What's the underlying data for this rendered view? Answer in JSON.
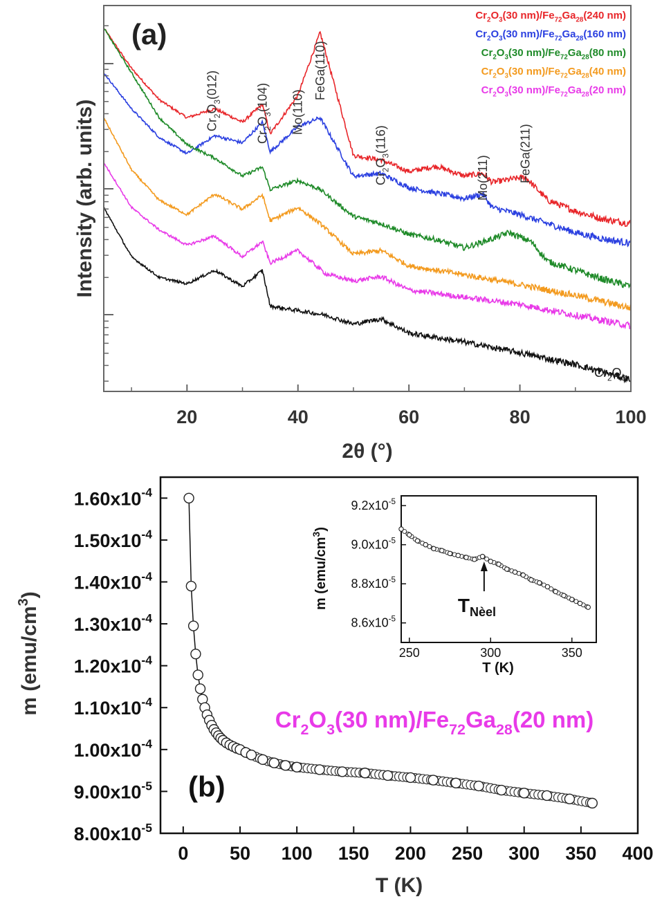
{
  "chart_data": [
    {
      "type": "line",
      "panel_label": "(a)",
      "xlabel": "2θ (°)",
      "ylabel": "Intensity (arb. units)",
      "xlim": [
        5,
        100
      ],
      "xticks": [
        20,
        40,
        60,
        80,
        100
      ],
      "log_like_minor_ticks": true,
      "legend_position": "top-right",
      "legend": [
        {
          "text": "Cr2O3(30 nm)/Fe72Ga28(240 nm)",
          "color": "#e8262a"
        },
        {
          "text": "Cr2O3(30 nm)/Fe72Ga28(160 nm)",
          "color": "#2a3fe0"
        },
        {
          "text": "Cr2O3(30 nm)/Fe72Ga28(80 nm)",
          "color": "#1e8a28"
        },
        {
          "text": "Cr2O3(30 nm)/Fe72Ga28(40 nm)",
          "color": "#f39a1e"
        },
        {
          "text": "Cr2O3(30 nm)/Fe72Ga28(20 nm)",
          "color": "#e83ae8"
        }
      ],
      "peak_labels": [
        {
          "text": "Cr2O3(012)",
          "x": 24.5
        },
        {
          "text": "Cr2O3(104)",
          "x": 33.6
        },
        {
          "text": "Mo(110)",
          "x": 40.0
        },
        {
          "text": "FeGa(110)",
          "x": 44.0
        },
        {
          "text": "Cr2O3(116)",
          "x": 54.9
        },
        {
          "text": "Mo(211)",
          "x": 73.3
        },
        {
          "text": "FeGa(211)",
          "x": 81.0
        }
      ],
      "substrate_label": "Cr2O3",
      "series": [
        {
          "name": "Cr2O3(30 nm)/Fe72Ga28(240 nm)",
          "color": "#e8262a",
          "x": [
            5,
            10,
            15,
            20,
            25,
            30,
            33.6,
            35,
            40,
            44,
            50,
            55,
            60,
            65,
            70,
            73.3,
            75,
            81,
            85,
            90,
            95,
            100
          ],
          "y": [
            8.6,
            8.15,
            7.8,
            7.6,
            7.7,
            7.55,
            7.75,
            7.42,
            7.85,
            8.55,
            7.18,
            7.13,
            7.0,
            7.06,
            6.95,
            6.98,
            6.88,
            6.94,
            6.68,
            6.56,
            6.47,
            6.42
          ]
        },
        {
          "name": "Cr2O3(30 nm)/Fe72Ga28(160 nm)",
          "color": "#2a3fe0",
          "x": [
            5,
            10,
            15,
            20,
            25,
            30,
            33.6,
            35,
            40,
            44,
            50,
            55,
            60,
            70,
            73.3,
            75,
            80,
            85,
            90,
            95,
            100
          ],
          "y": [
            8.1,
            7.7,
            7.38,
            7.2,
            7.4,
            7.32,
            7.55,
            7.22,
            7.5,
            7.6,
            6.95,
            6.98,
            6.82,
            6.7,
            6.75,
            6.6,
            6.52,
            6.42,
            6.32,
            6.25,
            6.2
          ]
        },
        {
          "name": "Cr2O3(30 nm)/Fe72Ga28(80 nm)",
          "color": "#1e8a28",
          "x": [
            5,
            10,
            15,
            20,
            25,
            30,
            33.6,
            35,
            40,
            44,
            50,
            55,
            60,
            65,
            70,
            75,
            78,
            82,
            85,
            90,
            95,
            100
          ],
          "y": [
            8.6,
            8.1,
            7.6,
            7.3,
            7.15,
            6.95,
            7.05,
            6.8,
            6.9,
            6.8,
            6.5,
            6.42,
            6.3,
            6.24,
            6.15,
            6.25,
            6.32,
            6.22,
            6.0,
            5.9,
            5.8,
            5.72
          ]
        },
        {
          "name": "Cr2O3(30 nm)/Fe72Ga28(40 nm)",
          "color": "#f39a1e",
          "x": [
            5,
            10,
            15,
            20,
            25,
            30,
            33.6,
            35,
            40,
            44,
            50,
            55,
            60,
            70,
            80,
            90,
            100
          ],
          "y": [
            7.6,
            7.02,
            6.68,
            6.52,
            6.75,
            6.58,
            6.74,
            6.45,
            6.6,
            6.42,
            6.08,
            6.12,
            5.95,
            5.85,
            5.74,
            5.62,
            5.48
          ]
        },
        {
          "name": "Cr2O3(30 nm)/Fe72Ga28(20 nm)",
          "color": "#e83ae8",
          "x": [
            5,
            10,
            15,
            20,
            25,
            30,
            33.6,
            35,
            40,
            45,
            50,
            55,
            60,
            70,
            80,
            90,
            100
          ],
          "y": [
            7.1,
            6.6,
            6.35,
            6.18,
            6.28,
            6.05,
            6.22,
            5.98,
            6.12,
            5.86,
            5.78,
            5.83,
            5.68,
            5.6,
            5.52,
            5.4,
            5.28
          ]
        },
        {
          "name": "Cr2O3",
          "color": "#111111",
          "x": [
            5,
            10,
            15,
            20,
            25,
            30,
            33.6,
            35,
            40,
            45,
            50,
            55,
            60,
            70,
            80,
            90,
            100
          ],
          "y": [
            6.6,
            6.05,
            5.82,
            5.75,
            5.9,
            5.72,
            5.9,
            5.5,
            5.45,
            5.4,
            5.3,
            5.36,
            5.2,
            5.1,
            4.98,
            4.85,
            4.68
          ]
        }
      ]
    },
    {
      "type": "scatter",
      "panel_label": "(b)",
      "xlabel": "T (K)",
      "ylabel": "m (emu/cm3)",
      "sample_label": "Cr2O3(30 nm)/Fe72Ga28(20 nm)",
      "xlim": [
        -20,
        400
      ],
      "ylim": [
        8e-05,
        0.000165
      ],
      "xticks": [
        0,
        50,
        100,
        150,
        200,
        250,
        300,
        350,
        400
      ],
      "yticks": [
        8e-05,
        9e-05,
        0.0001,
        0.00011,
        0.00012,
        0.00013,
        0.00014,
        0.00015,
        0.00016
      ],
      "ytick_labels": [
        "8.00x10-5",
        "9.00x10-5",
        "1.00x10-4",
        "1.10x10-4",
        "1.20x10-4",
        "1.30x10-4",
        "1.40x10-4",
        "1.50x10-4",
        "1.60x10-4"
      ],
      "x": [
        5,
        7,
        9,
        11,
        13,
        15,
        17,
        19,
        21,
        23,
        25,
        27,
        29,
        31,
        33,
        35,
        38,
        41,
        44,
        47,
        50,
        55,
        60,
        70,
        80,
        90,
        100,
        120,
        140,
        160,
        180,
        200,
        220,
        240,
        260,
        280,
        300,
        320,
        340,
        360
      ],
      "y": [
        0.00016,
        0.000139,
        0.0001295,
        0.0001228,
        0.0001178,
        0.0001145,
        0.000112,
        0.00011,
        0.0001083,
        0.000107,
        0.0001058,
        0.0001048,
        0.000104,
        0.0001033,
        0.0001027,
        0.0001022,
        0.0001016,
        0.0001011,
        0.0001007,
        0.0001003,
        0.0001,
        9.93e-05,
        9.87e-05,
        9.76e-05,
        9.68e-05,
        9.62e-05,
        9.58e-05,
        9.52e-05,
        9.47e-05,
        9.44e-05,
        9.38e-05,
        9.33e-05,
        9.27e-05,
        9.2e-05,
        9.13e-05,
        9.03e-05,
        8.96e-05,
        8.9e-05,
        8.82e-05,
        8.72e-05
      ],
      "inset": {
        "type": "scatter",
        "xlabel": "T (K)",
        "ylabel": "m (emu/cm3)",
        "xlim": [
          245,
          365
        ],
        "ylim": [
          8.5e-05,
          9.25e-05
        ],
        "xticks": [
          250,
          300,
          350
        ],
        "yticks": [
          8.6e-05,
          8.8e-05,
          9e-05,
          9.2e-05
        ],
        "ytick_labels": [
          "8.6x10-5",
          "8.8x10-5",
          "9.0x10-5",
          "9.2x10-5"
        ],
        "annotation": "TNèel",
        "annotation_x": 296,
        "x": [
          245,
          250,
          255,
          260,
          265,
          270,
          275,
          280,
          285,
          290,
          295,
          300,
          305,
          310,
          315,
          320,
          325,
          330,
          335,
          340,
          345,
          350,
          355,
          360
        ],
        "y": [
          9.08e-05,
          9.05e-05,
          9.02e-05,
          9e-05,
          8.98e-05,
          8.97e-05,
          8.955e-05,
          8.945e-05,
          8.935e-05,
          8.925e-05,
          8.94e-05,
          8.915e-05,
          8.9e-05,
          8.875e-05,
          8.86e-05,
          8.845e-05,
          8.82e-05,
          8.805e-05,
          8.785e-05,
          8.76e-05,
          8.74e-05,
          8.72e-05,
          8.7e-05,
          8.68e-05
        ]
      }
    }
  ]
}
